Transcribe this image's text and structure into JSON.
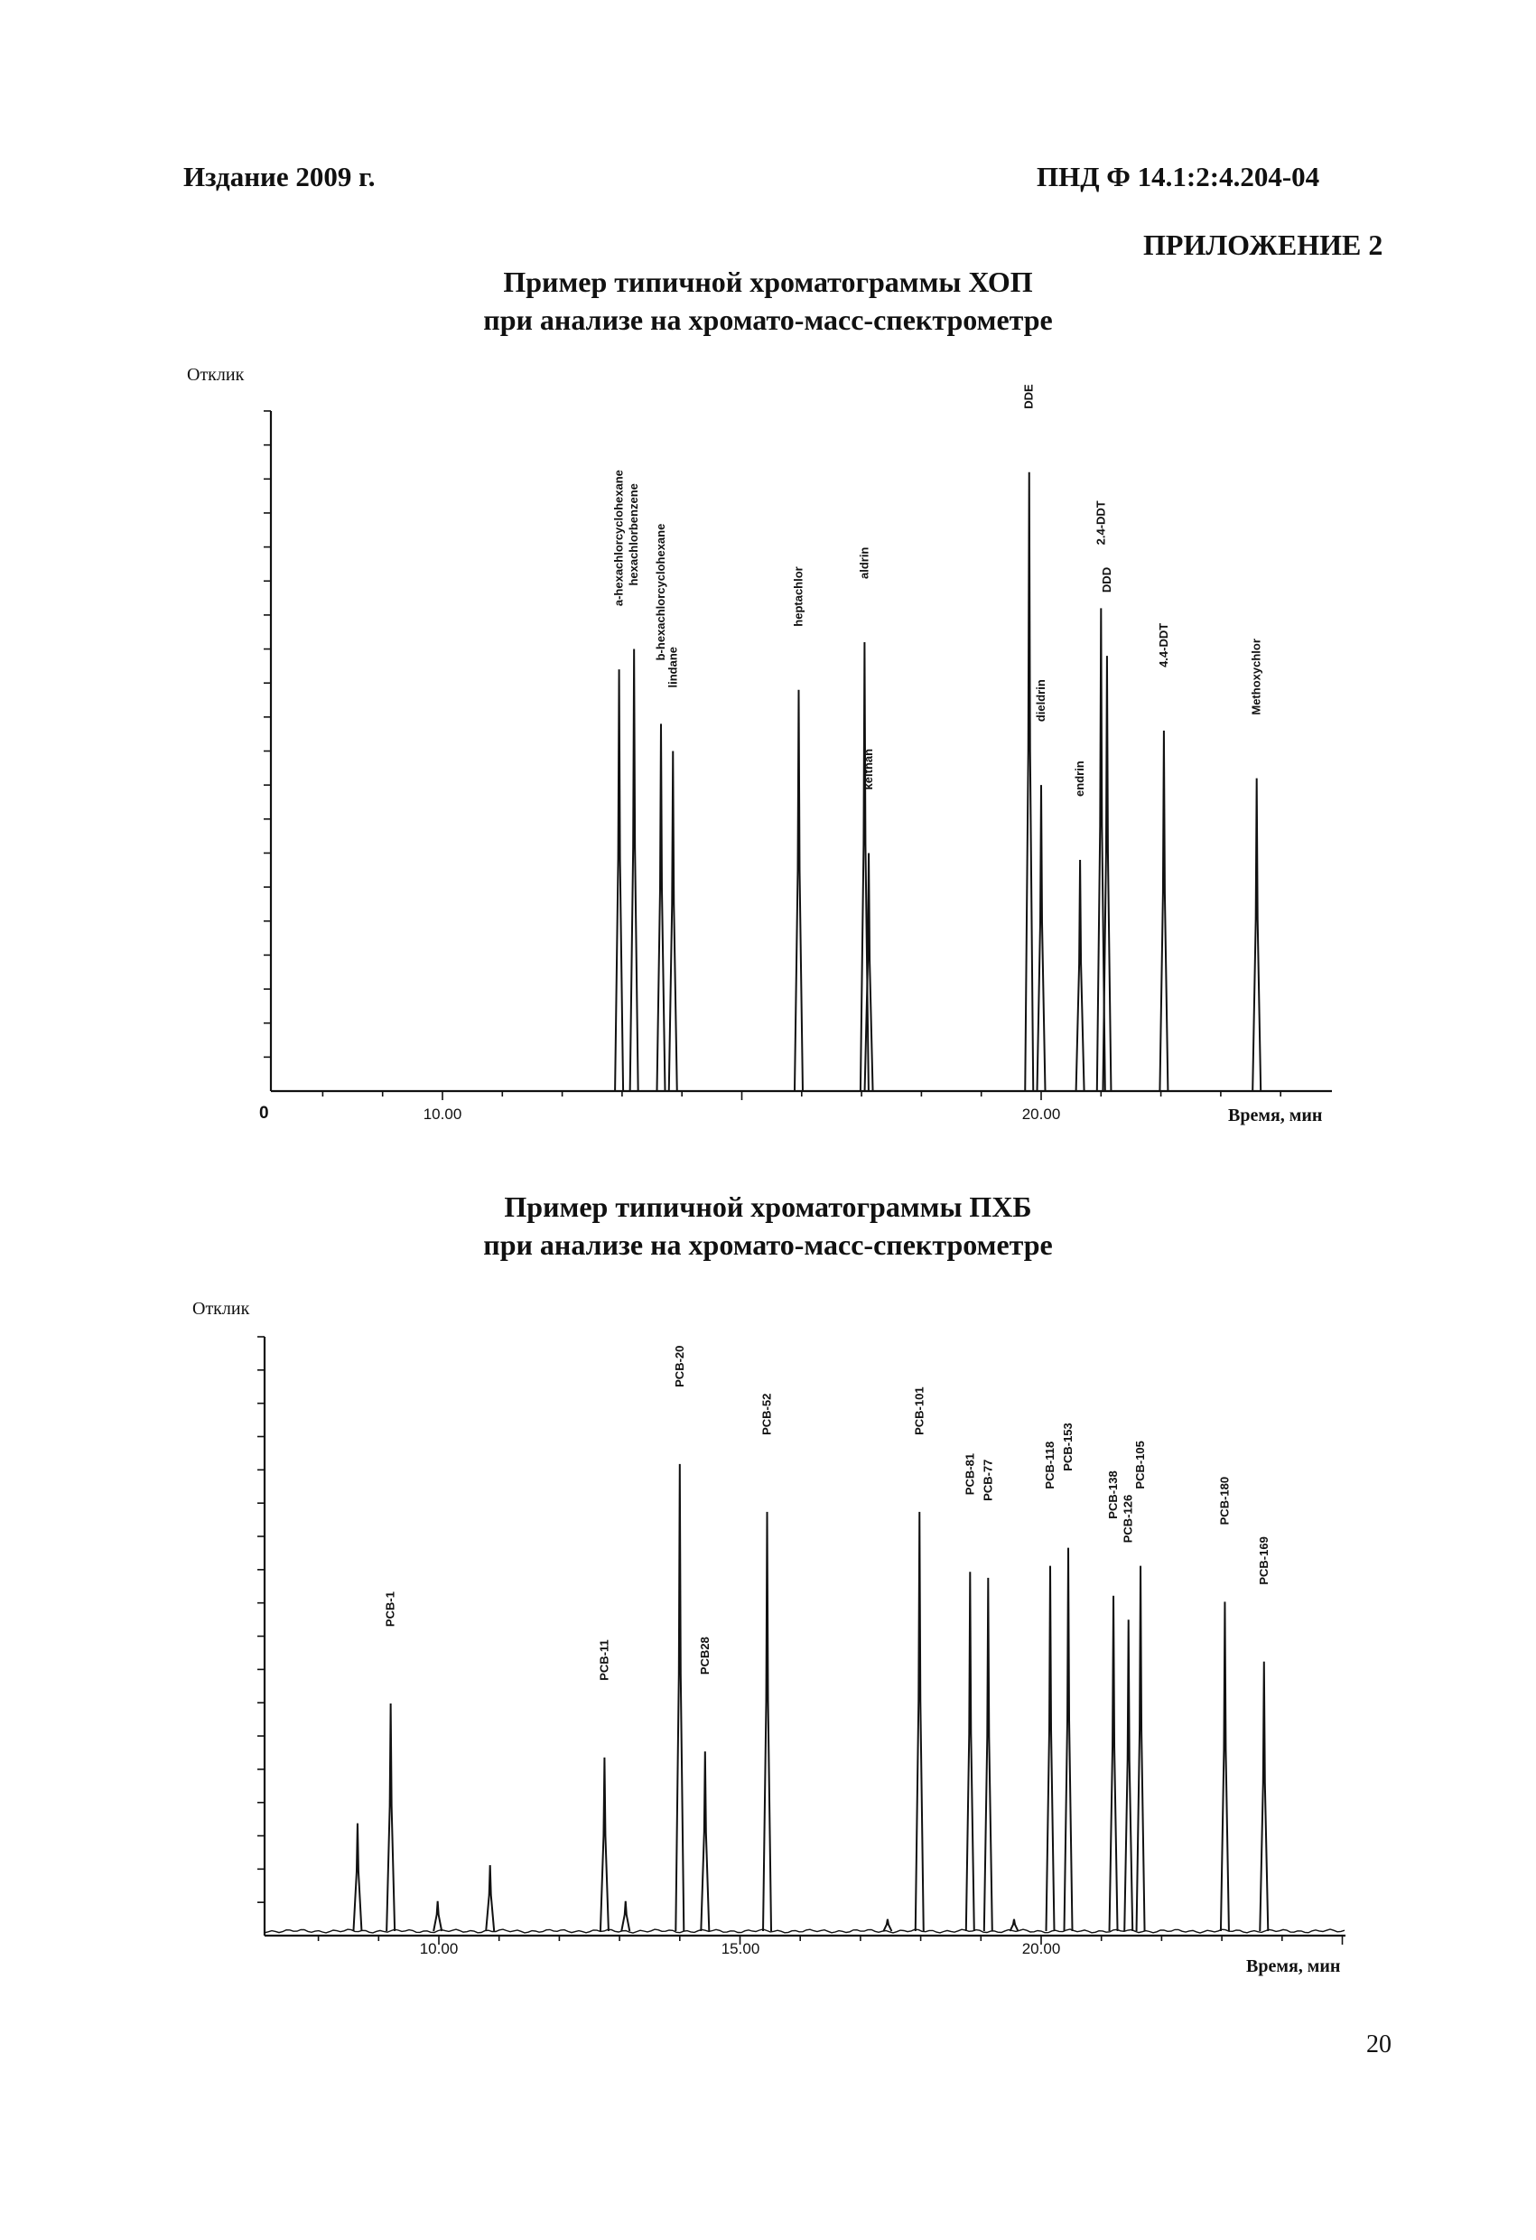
{
  "header": {
    "edition": "Издание 2009 г.",
    "doc_number": "ПНД Ф 14.1:2:4.204-04",
    "appendix": "ПРИЛОЖЕНИЕ 2"
  },
  "page_number": "20",
  "chromatograms": [
    {
      "title_line1": "Пример типичной хроматограммы ХОП",
      "title_line2": "при анализе на хромато-масс-спектрометре",
      "y_label": "Отклик",
      "x_label": "Время, мин",
      "origin_label": "0",
      "x_ticks": [
        {
          "value": 10,
          "label": "10.00"
        },
        {
          "value": 20,
          "label": "20.00"
        }
      ],
      "peaks": [
        {
          "t": 12.95,
          "h": 0.62,
          "label": "a-hexachlorcyclohexane"
        },
        {
          "t": 13.2,
          "h": 0.65,
          "label": "hexachlorbenzene"
        },
        {
          "t": 13.65,
          "h": 0.54,
          "label": "b-hexachlorcyclohexane"
        },
        {
          "t": 13.85,
          "h": 0.5,
          "label": "lindane"
        },
        {
          "t": 15.95,
          "h": 0.59,
          "label": "heptachlor"
        },
        {
          "t": 17.05,
          "h": 0.66,
          "label": "aldrin"
        },
        {
          "t": 17.12,
          "h": 0.35,
          "label": "kelthan"
        },
        {
          "t": 19.8,
          "h": 0.91,
          "label": "DDE"
        },
        {
          "t": 20.0,
          "h": 0.45,
          "label": "dieldrin"
        },
        {
          "t": 20.65,
          "h": 0.34,
          "label": "endrin"
        },
        {
          "t": 21.0,
          "h": 0.71,
          "label": "2.4-DDT"
        },
        {
          "t": 21.1,
          "h": 0.64,
          "label": "DDD"
        },
        {
          "t": 22.05,
          "h": 0.53,
          "label": "4.4-DDT"
        },
        {
          "t": 23.6,
          "h": 0.46,
          "label": "Methoxychlor"
        }
      ]
    },
    {
      "title_line1": "Пример типичной хроматограммы ПХБ",
      "title_line2": "при анализе на хромато-масс-спектрометре",
      "y_label": "Отклик",
      "x_label": "Время, мин",
      "x_ticks": [
        {
          "value": 10,
          "label": "10.00"
        },
        {
          "value": 15,
          "label": "15.00"
        },
        {
          "value": 20,
          "label": "20.00"
        }
      ],
      "peaks": [
        {
          "t": 8.65,
          "h": 0.18,
          "label": ""
        },
        {
          "t": 9.2,
          "h": 0.38,
          "label": "PCB-1"
        },
        {
          "t": 9.98,
          "h": 0.05,
          "label": ""
        },
        {
          "t": 10.85,
          "h": 0.11,
          "label": ""
        },
        {
          "t": 12.75,
          "h": 0.29,
          "label": "PCB-11"
        },
        {
          "t": 13.1,
          "h": 0.05,
          "label": ""
        },
        {
          "t": 14.0,
          "h": 0.78,
          "label": "PCB-20"
        },
        {
          "t": 14.42,
          "h": 0.3,
          "label": "PCB28"
        },
        {
          "t": 15.45,
          "h": 0.7,
          "label": "PCB-52"
        },
        {
          "t": 17.45,
          "h": 0.02,
          "label": ""
        },
        {
          "t": 17.98,
          "h": 0.7,
          "label": "PCB-101"
        },
        {
          "t": 18.82,
          "h": 0.6,
          "label": "PCB-81"
        },
        {
          "t": 19.12,
          "h": 0.59,
          "label": "PCB-77"
        },
        {
          "t": 19.55,
          "h": 0.02,
          "label": ""
        },
        {
          "t": 20.15,
          "h": 0.61,
          "label": "PCB-118"
        },
        {
          "t": 20.45,
          "h": 0.64,
          "label": "PCB-153"
        },
        {
          "t": 21.2,
          "h": 0.56,
          "label": "PCB-138"
        },
        {
          "t": 21.45,
          "h": 0.52,
          "label": "PCB-126"
        },
        {
          "t": 21.65,
          "h": 0.61,
          "label": "PCB-105"
        },
        {
          "t": 23.05,
          "h": 0.55,
          "label": "PCB-180"
        },
        {
          "t": 23.7,
          "h": 0.45,
          "label": "PCB-169"
        }
      ]
    }
  ]
}
